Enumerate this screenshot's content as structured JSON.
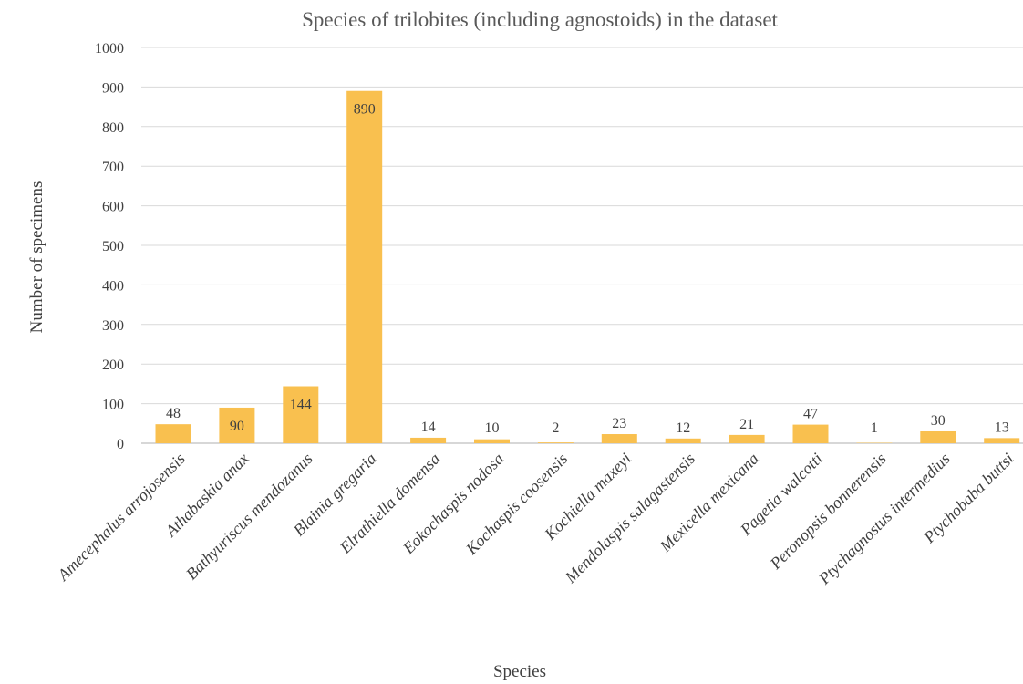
{
  "chart_data": {
    "type": "bar",
    "title": "Species of trilobites (including agnostoids) in the dataset",
    "xlabel": "Species",
    "ylabel": "Number of  specimens",
    "ylim": [
      0,
      1000
    ],
    "yticks": [
      0,
      100,
      200,
      300,
      400,
      500,
      600,
      700,
      800,
      900,
      1000
    ],
    "grid": true,
    "legend": "none",
    "bar_color": "#F9C04F",
    "categories": [
      "Amecephalus arrojosensis",
      "Athabaskia anax",
      "Bathyuriscus mendozanus",
      "Blainia gregaria",
      "Elrathiella domensa",
      "Eokochaspis nodosa",
      "Kochaspis coosensis",
      "Kochiella maxeyi",
      "Mendolaspis salagastensis",
      "Mexicella mexicana",
      "Pagetia walcotti",
      "Peronopsis bonnerensis",
      "Ptychagnostus intermedius",
      "Ptychobaba buttsi"
    ],
    "values": [
      48,
      90,
      144,
      890,
      14,
      10,
      2,
      23,
      12,
      21,
      47,
      1,
      30,
      13
    ],
    "data_labels": [
      "48",
      "90",
      "144",
      "890",
      "14",
      "10",
      "2",
      "23",
      "12",
      "21",
      "47",
      "1",
      "30",
      "13"
    ]
  }
}
